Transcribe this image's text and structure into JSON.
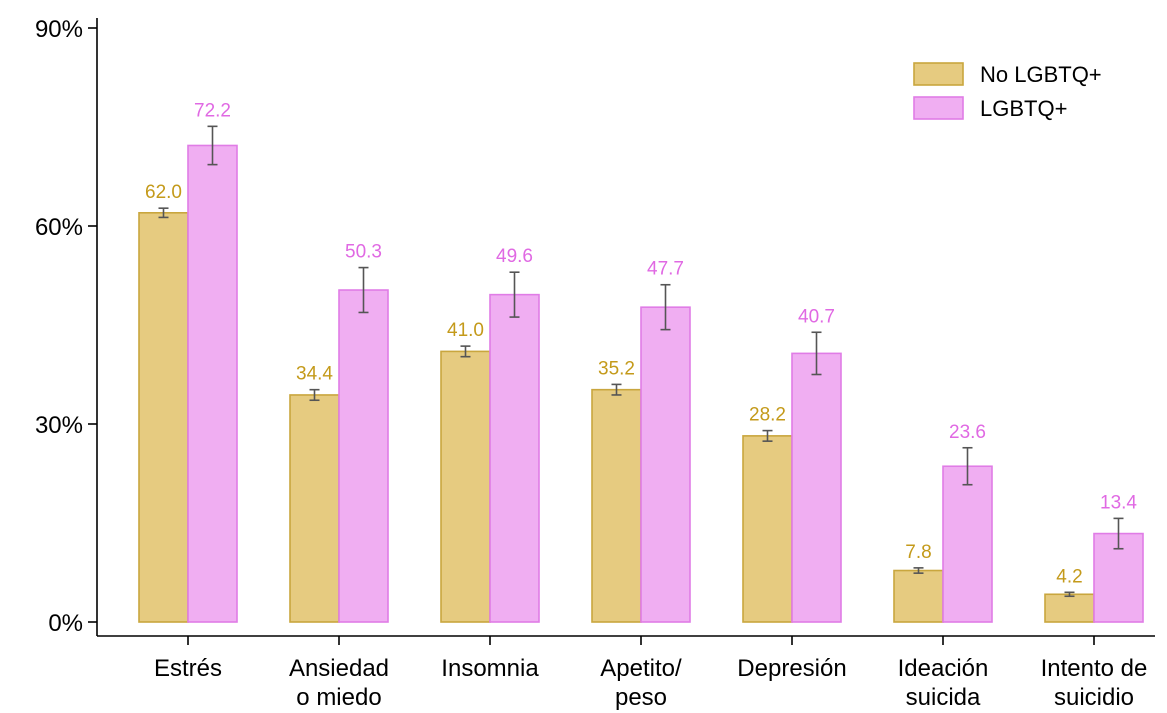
{
  "chart_data": {
    "type": "bar",
    "categories": [
      [
        "Estrés"
      ],
      [
        "Ansiedad",
        "o miedo"
      ],
      [
        "Insomnia"
      ],
      [
        "Apetito/",
        "peso"
      ],
      [
        "Depresión"
      ],
      [
        "Ideación",
        "suicida"
      ],
      [
        "Intento de",
        "suicidio"
      ]
    ],
    "series": [
      {
        "name": "No LGBTQ+",
        "color": "#e6cb80",
        "stroke": "#c9a63e",
        "label_color": "#c49a1a",
        "values": [
          62.0,
          34.4,
          41.0,
          35.2,
          28.2,
          7.8,
          4.2
        ],
        "labels": [
          "62.0",
          "34.4",
          "41.0",
          "35.2",
          "28.2",
          "7.8",
          "4.2"
        ],
        "err_low": [
          61.3,
          33.6,
          40.2,
          34.4,
          27.4,
          7.4,
          3.9
        ],
        "err_high": [
          62.7,
          35.2,
          41.8,
          36.0,
          29.0,
          8.2,
          4.5
        ]
      },
      {
        "name": "LGBTQ+",
        "color": "#f0aef2",
        "stroke": "#e07ce6",
        "label_color": "#e069e3",
        "values": [
          72.2,
          50.3,
          49.6,
          47.7,
          40.7,
          23.6,
          13.4
        ],
        "labels": [
          "72.2",
          "50.3",
          "49.6",
          "47.7",
          "40.7",
          "23.6",
          "13.4"
        ],
        "err_low": [
          69.3,
          46.9,
          46.2,
          44.3,
          37.5,
          20.8,
          11.1
        ],
        "err_high": [
          75.1,
          53.7,
          53.0,
          51.1,
          43.9,
          26.4,
          15.7
        ]
      }
    ],
    "y_ticks": [
      0,
      30,
      60,
      90
    ],
    "y_tick_labels": [
      "0%",
      "30%",
      "60%",
      "90%"
    ],
    "ylim": [
      0,
      90
    ],
    "legend_position": "top-right",
    "grid": false
  }
}
